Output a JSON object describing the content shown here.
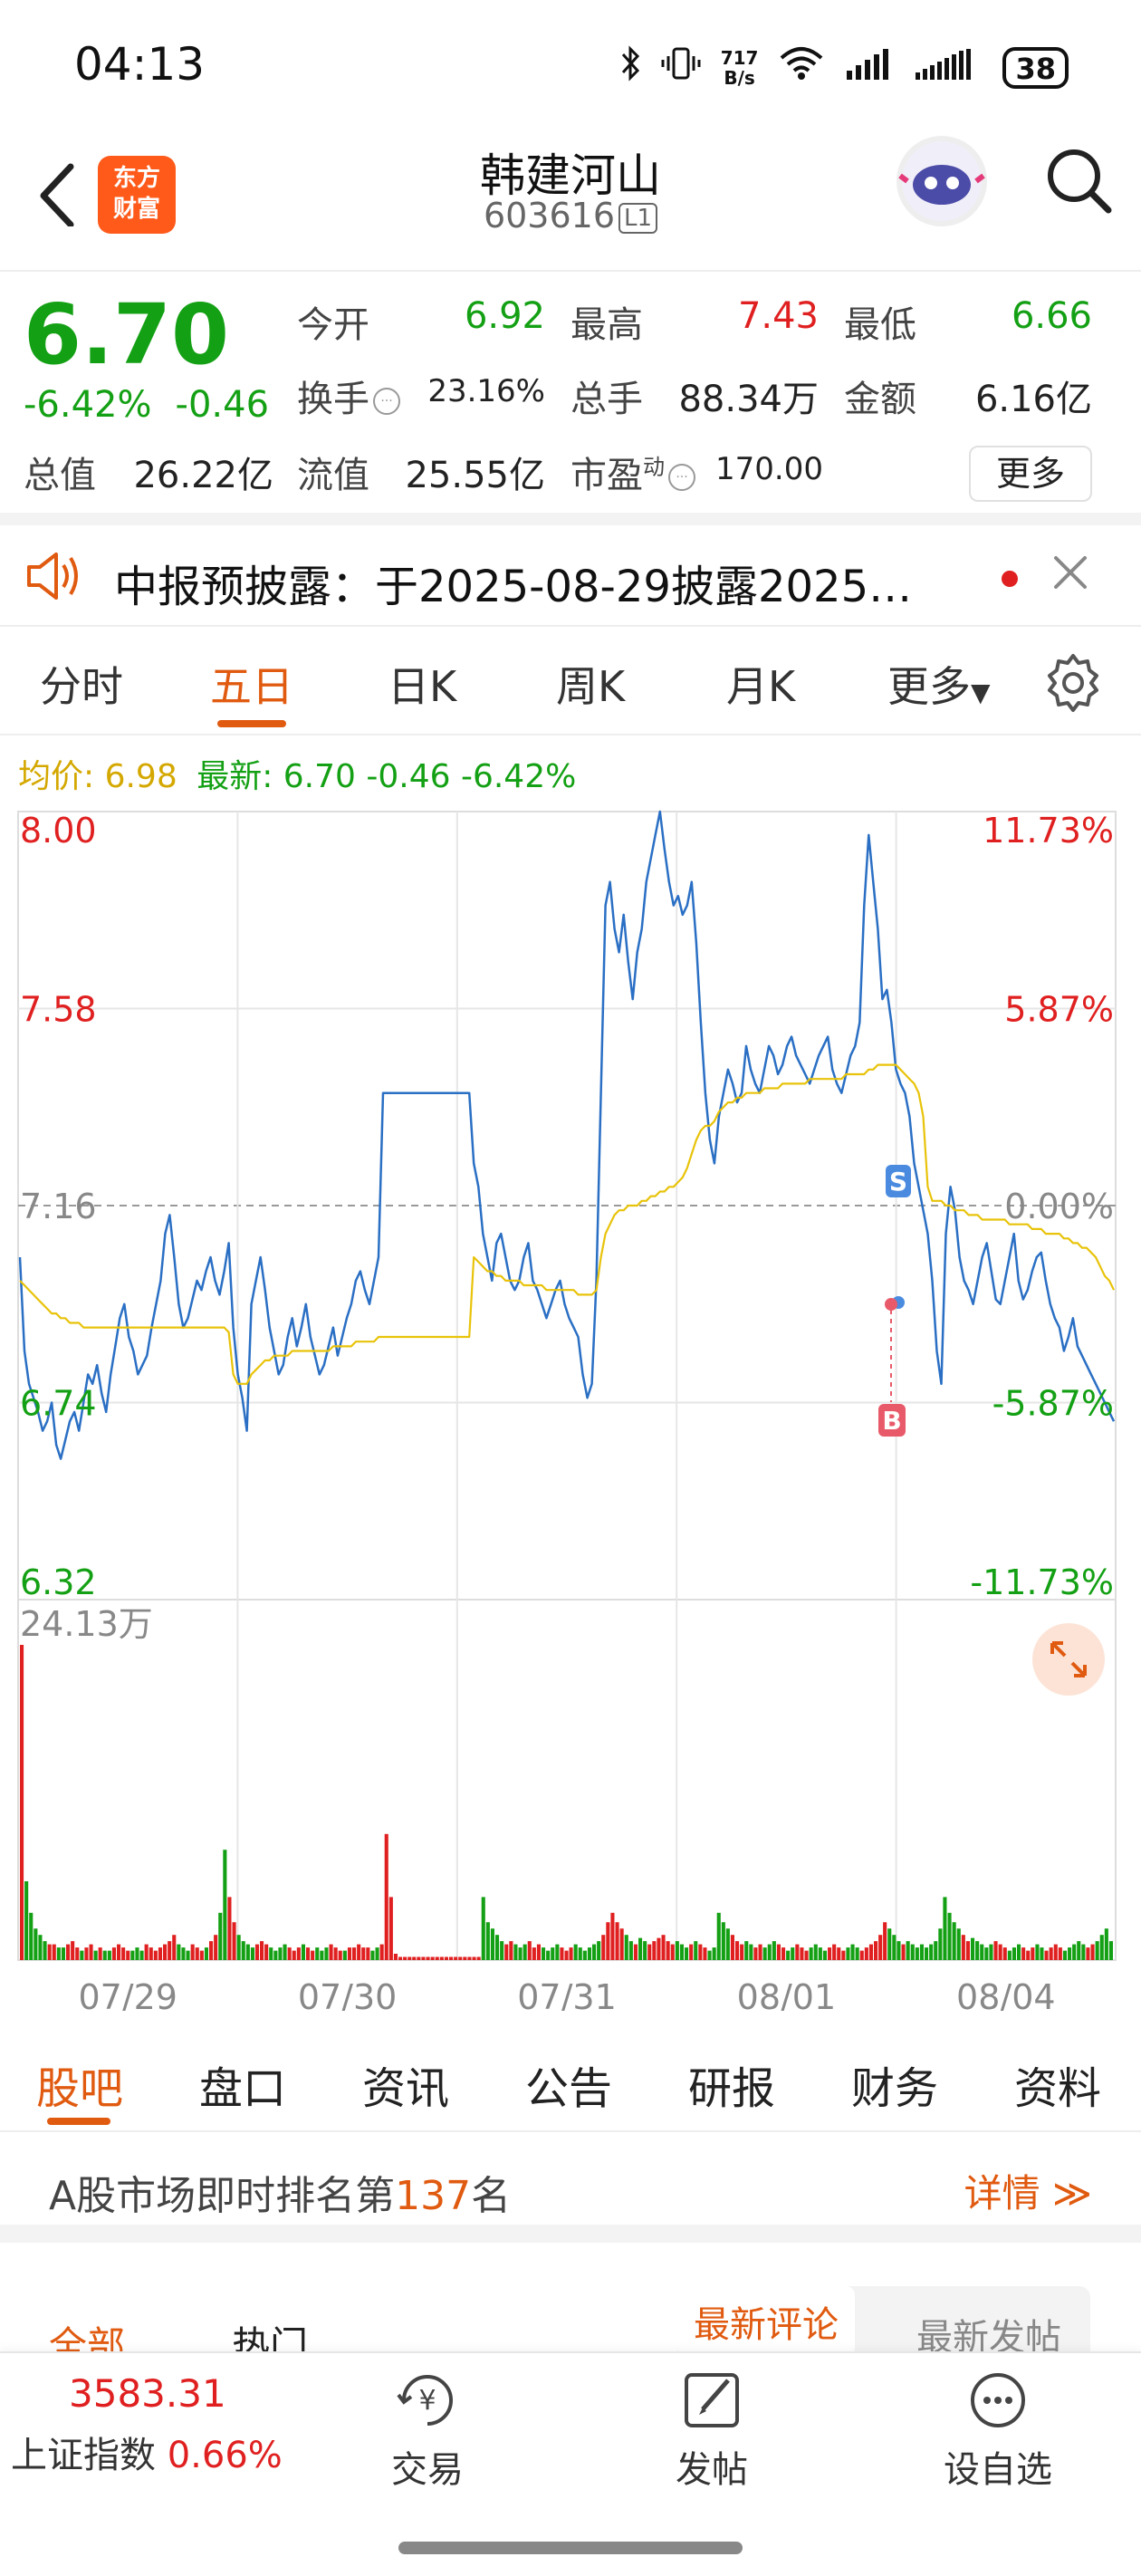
{
  "status_bar": {
    "time": "04:13",
    "net_speed_top": "717",
    "net_speed_unit": "B/s",
    "battery": "38"
  },
  "header": {
    "stock_name": "韩建河山",
    "stock_code": "603616",
    "level_badge": "L1",
    "logo_text_line1": "东方",
    "logo_text_line2": "财富"
  },
  "quote": {
    "price": "6.70",
    "change_pct": "-6.42%",
    "change_abs": "-0.46",
    "open_label": "今开",
    "open_value": "6.92",
    "high_label": "最高",
    "high_value": "7.43",
    "low_label": "最低",
    "low_value": "6.66",
    "turnover_label": "换手",
    "turnover_value": "23.16%",
    "volume_label": "总手",
    "volume_value": "88.34万",
    "amount_label": "金额",
    "amount_value": "6.16亿",
    "total_mv_label": "总值",
    "total_mv_value": "26.22亿",
    "float_mv_label": "流值",
    "float_mv_value": "25.55亿",
    "pe_label": "市盈",
    "pe_sup": "动",
    "pe_value": "170.00",
    "more_button": "更多"
  },
  "notice": {
    "text": "中报预披露：于2025-08-29披露2025…"
  },
  "tabs": [
    "分时",
    "五日",
    "日K",
    "周K",
    "月K",
    "更多"
  ],
  "active_tab": "五日",
  "chart_legend": {
    "avg_label": "均价: 6.98",
    "latest_label": "最新: 6.70 -0.46 -6.42%"
  },
  "chart_data": {
    "type": "line",
    "title": "",
    "series": [
      {
        "name": "价格",
        "color": "#2a6fc4",
        "values": [
          7.05,
          6.85,
          6.78,
          6.75,
          6.72,
          6.68,
          6.7,
          6.74,
          6.65,
          6.62,
          6.66,
          6.7,
          6.72,
          6.68,
          6.74,
          6.8,
          6.78,
          6.82,
          6.76,
          6.72,
          6.8,
          6.86,
          6.92,
          6.95,
          6.88,
          6.85,
          6.8,
          6.82,
          6.84,
          6.9,
          6.95,
          7.0,
          7.1,
          7.14,
          7.05,
          6.95,
          6.9,
          6.92,
          6.96,
          7.0,
          6.98,
          7.02,
          7.05,
          7.0,
          6.97,
          7.02,
          7.08,
          6.9,
          6.8,
          6.75,
          6.68,
          6.95,
          7.0,
          7.05,
          6.98,
          6.9,
          6.85,
          6.8,
          6.82,
          6.88,
          6.92,
          6.86,
          6.9,
          6.95,
          6.88,
          6.84,
          6.8,
          6.82,
          6.86,
          6.9,
          6.84,
          6.88,
          6.92,
          6.95,
          7.0,
          7.02,
          6.98,
          6.95,
          7.0,
          7.05,
          7.4,
          7.4,
          7.4,
          7.4,
          7.4,
          7.4,
          7.4,
          7.4,
          7.4,
          7.4,
          7.4,
          7.4,
          7.4,
          7.4,
          7.4,
          7.4,
          7.4,
          7.4,
          7.4,
          7.4,
          7.25,
          7.2,
          7.1,
          7.05,
          7.0,
          7.08,
          7.1,
          7.05,
          7.0,
          6.98,
          7.0,
          7.05,
          7.08,
          7.0,
          6.98,
          6.95,
          6.92,
          6.95,
          6.98,
          7.0,
          6.95,
          6.92,
          6.9,
          6.88,
          6.8,
          6.75,
          6.78,
          7.0,
          7.4,
          7.8,
          7.85,
          7.75,
          7.7,
          7.78,
          7.68,
          7.6,
          7.7,
          7.75,
          7.85,
          7.9,
          7.95,
          8.0,
          7.92,
          7.85,
          7.8,
          7.82,
          7.78,
          7.8,
          7.85,
          7.72,
          7.55,
          7.4,
          7.3,
          7.25,
          7.35,
          7.4,
          7.45,
          7.42,
          7.38,
          7.4,
          7.5,
          7.45,
          7.42,
          7.4,
          7.45,
          7.5,
          7.48,
          7.44,
          7.46,
          7.5,
          7.52,
          7.48,
          7.46,
          7.44,
          7.42,
          7.45,
          7.48,
          7.5,
          7.52,
          7.45,
          7.42,
          7.4,
          7.44,
          7.48,
          7.5,
          7.55,
          7.8,
          7.95,
          7.85,
          7.75,
          7.6,
          7.62,
          7.55,
          7.45,
          7.42,
          7.4,
          7.35,
          7.25,
          7.2,
          7.15,
          7.1,
          7.0,
          6.85,
          6.78,
          7.1,
          7.2,
          7.15,
          7.05,
          7.0,
          6.98,
          6.95,
          7.0,
          7.05,
          7.08,
          7.02,
          6.96,
          6.95,
          7.0,
          7.05,
          7.1,
          7.0,
          6.96,
          6.98,
          7.02,
          7.05,
          7.06,
          7.0,
          6.95,
          6.92,
          6.9,
          6.85,
          6.88,
          6.92,
          6.86,
          6.84,
          6.82,
          6.8,
          6.78,
          6.76,
          6.74,
          6.72,
          6.7
        ]
      },
      {
        "name": "均价",
        "color": "#e8c30a",
        "values": [
          7.0,
          6.99,
          6.98,
          6.97,
          6.96,
          6.95,
          6.94,
          6.93,
          6.93,
          6.92,
          6.92,
          6.91,
          6.91,
          6.91,
          6.9,
          6.9,
          6.9,
          6.9,
          6.9,
          6.9,
          6.9,
          6.9,
          6.9,
          6.9,
          6.9,
          6.9,
          6.9,
          6.9,
          6.9,
          6.9,
          6.9,
          6.9,
          6.9,
          6.9,
          6.9,
          6.9,
          6.9,
          6.9,
          6.9,
          6.9,
          6.9,
          6.9,
          6.9,
          6.9,
          6.9,
          6.9,
          6.89,
          6.8,
          6.78,
          6.78,
          6.78,
          6.8,
          6.81,
          6.82,
          6.83,
          6.83,
          6.84,
          6.84,
          6.84,
          6.84,
          6.85,
          6.85,
          6.85,
          6.85,
          6.85,
          6.85,
          6.85,
          6.85,
          6.85,
          6.86,
          6.86,
          6.86,
          6.86,
          6.86,
          6.87,
          6.87,
          6.87,
          6.87,
          6.87,
          6.88,
          6.88,
          6.88,
          6.88,
          6.88,
          6.88,
          6.88,
          6.88,
          6.88,
          6.88,
          6.88,
          6.88,
          6.88,
          6.88,
          6.88,
          6.88,
          6.88,
          6.88,
          6.88,
          6.88,
          6.88,
          7.05,
          7.04,
          7.03,
          7.02,
          7.02,
          7.01,
          7.01,
          7.0,
          7.0,
          7.0,
          7.0,
          6.99,
          6.99,
          6.99,
          6.99,
          6.99,
          6.98,
          6.98,
          6.98,
          6.98,
          6.98,
          6.98,
          6.98,
          6.97,
          6.97,
          6.97,
          6.97,
          6.98,
          7.05,
          7.1,
          7.12,
          7.14,
          7.15,
          7.15,
          7.16,
          7.16,
          7.16,
          7.17,
          7.17,
          7.18,
          7.18,
          7.19,
          7.19,
          7.2,
          7.2,
          7.21,
          7.22,
          7.24,
          7.27,
          7.3,
          7.32,
          7.33,
          7.33,
          7.34,
          7.36,
          7.37,
          7.38,
          7.38,
          7.39,
          7.39,
          7.4,
          7.4,
          7.4,
          7.4,
          7.41,
          7.41,
          7.41,
          7.41,
          7.42,
          7.42,
          7.42,
          7.42,
          7.42,
          7.42,
          7.43,
          7.43,
          7.43,
          7.43,
          7.43,
          7.43,
          7.43,
          7.43,
          7.44,
          7.44,
          7.44,
          7.44,
          7.44,
          7.45,
          7.45,
          7.46,
          7.46,
          7.46,
          7.46,
          7.46,
          7.45,
          7.44,
          7.43,
          7.42,
          7.4,
          7.35,
          7.2,
          7.17,
          7.17,
          7.17,
          7.16,
          7.16,
          7.15,
          7.15,
          7.15,
          7.14,
          7.14,
          7.14,
          7.13,
          7.13,
          7.13,
          7.13,
          7.13,
          7.13,
          7.12,
          7.12,
          7.12,
          7.12,
          7.12,
          7.11,
          7.11,
          7.11,
          7.1,
          7.1,
          7.1,
          7.1,
          7.09,
          7.09,
          7.08,
          7.08,
          7.07,
          7.07,
          7.06,
          7.05,
          7.03,
          7.01,
          7.0,
          6.98
        ]
      }
    ],
    "x_tick_labels": [
      "07/29",
      "07/30",
      "07/31",
      "08/01",
      "08/04"
    ],
    "y_left_labels": [
      "8.00",
      "7.58",
      "7.16",
      "6.74",
      "6.32"
    ],
    "y_right_labels": [
      "11.73%",
      "5.87%",
      "0.00%",
      "-5.87%",
      "-11.73%"
    ],
    "ylim": [
      6.32,
      8.0
    ],
    "prev_close": 7.16,
    "volume_max_label": "24.13万",
    "volume_values": [
      1.0,
      0.25,
      0.15,
      0.1,
      0.08,
      0.06,
      0.05,
      0.05,
      0.04,
      0.04,
      0.05,
      0.06,
      0.04,
      0.03,
      0.04,
      0.05,
      0.03,
      0.04,
      0.03,
      0.03,
      0.04,
      0.05,
      0.04,
      0.03,
      0.03,
      0.04,
      0.03,
      0.05,
      0.04,
      0.03,
      0.04,
      0.05,
      0.06,
      0.08,
      0.05,
      0.04,
      0.03,
      0.05,
      0.04,
      0.03,
      0.04,
      0.06,
      0.08,
      0.15,
      0.35,
      0.2,
      0.12,
      0.08,
      0.06,
      0.05,
      0.04,
      0.05,
      0.06,
      0.05,
      0.04,
      0.03,
      0.04,
      0.05,
      0.04,
      0.03,
      0.04,
      0.05,
      0.04,
      0.03,
      0.04,
      0.03,
      0.04,
      0.05,
      0.04,
      0.03,
      0.03,
      0.04,
      0.04,
      0.05,
      0.04,
      0.04,
      0.03,
      0.04,
      0.05,
      0.4,
      0.2,
      0.02,
      0.01,
      0.01,
      0.01,
      0.01,
      0.01,
      0.01,
      0.01,
      0.01,
      0.01,
      0.01,
      0.01,
      0.01,
      0.01,
      0.01,
      0.01,
      0.01,
      0.01,
      0.01,
      0.2,
      0.12,
      0.1,
      0.08,
      0.06,
      0.05,
      0.06,
      0.05,
      0.04,
      0.05,
      0.06,
      0.04,
      0.05,
      0.04,
      0.03,
      0.04,
      0.05,
      0.04,
      0.03,
      0.04,
      0.05,
      0.04,
      0.03,
      0.04,
      0.05,
      0.06,
      0.08,
      0.12,
      0.15,
      0.12,
      0.1,
      0.08,
      0.06,
      0.05,
      0.07,
      0.06,
      0.05,
      0.06,
      0.07,
      0.08,
      0.06,
      0.05,
      0.06,
      0.05,
      0.04,
      0.05,
      0.06,
      0.05,
      0.04,
      0.03,
      0.04,
      0.15,
      0.12,
      0.1,
      0.08,
      0.06,
      0.05,
      0.06,
      0.05,
      0.04,
      0.05,
      0.04,
      0.05,
      0.06,
      0.05,
      0.04,
      0.03,
      0.04,
      0.05,
      0.04,
      0.03,
      0.04,
      0.05,
      0.04,
      0.03,
      0.04,
      0.05,
      0.04,
      0.03,
      0.04,
      0.05,
      0.04,
      0.03,
      0.04,
      0.05,
      0.06,
      0.08,
      0.12,
      0.1,
      0.08,
      0.06,
      0.05,
      0.06,
      0.05,
      0.04,
      0.05,
      0.04,
      0.05,
      0.06,
      0.1,
      0.2,
      0.15,
      0.12,
      0.1,
      0.08,
      0.06,
      0.07,
      0.06,
      0.05,
      0.04,
      0.05,
      0.06,
      0.05,
      0.04,
      0.03,
      0.04,
      0.05,
      0.04,
      0.03,
      0.04,
      0.05,
      0.04,
      0.03,
      0.04,
      0.05,
      0.04,
      0.03,
      0.04,
      0.05,
      0.06,
      0.05,
      0.04,
      0.05,
      0.06,
      0.08,
      0.1,
      0.06
    ],
    "marker_sell": "S",
    "marker_buy": "B",
    "grid": true
  },
  "sub_tabs": [
    "股吧",
    "盘口",
    "资讯",
    "公告",
    "研报",
    "财务",
    "资料"
  ],
  "rank": {
    "prefix": "A股市场即时排名第",
    "number": "137",
    "suffix": "名",
    "detail": "详情"
  },
  "filter": {
    "all": "全部",
    "hot": "热门",
    "latest_comment": "最新评论",
    "latest_post": "最新发帖"
  },
  "bottom_bar": {
    "index_value": "3583.31",
    "index_name": "上证指数",
    "index_pct": "0.66%",
    "trade": "交易",
    "post": "发帖",
    "add_watch": "设自选",
    "trade_symbol": "¥"
  }
}
